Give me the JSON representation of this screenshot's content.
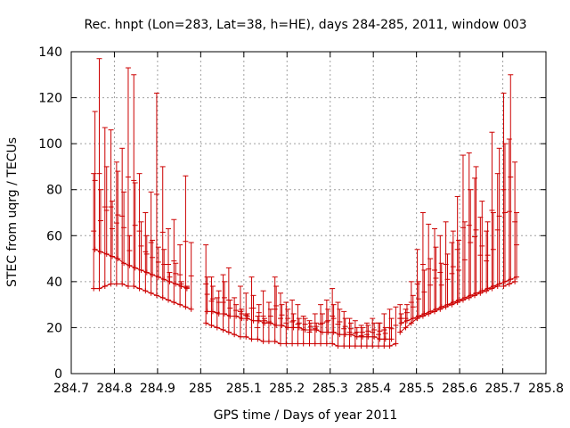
{
  "chart_data": {
    "type": "scatter",
    "title": "Rec. hnpt (Lon=283, Lat=38, h=HE), days 284-285, 2011, window 003",
    "xlabel": "GPS time / Days of year 2011",
    "ylabel": "STEC from uqrg / TECUs",
    "xlim": [
      284.7,
      285.8
    ],
    "ylim": [
      0,
      140
    ],
    "xticks": [
      "284.7",
      "284.8",
      "284.9",
      "285",
      "285.1",
      "285.2",
      "285.3",
      "285.4",
      "285.5",
      "285.6",
      "285.7",
      "285.8"
    ],
    "yticks": [
      "0",
      "20",
      "40",
      "60",
      "80",
      "100",
      "120",
      "140"
    ],
    "grid": true,
    "color": "#cc0000",
    "series": [
      {
        "x": [
          284.752,
          284.765,
          284.778,
          284.792,
          284.805,
          284.818,
          284.832,
          284.845,
          284.858,
          284.872,
          284.885,
          284.898,
          284.912,
          284.925,
          284.938,
          284.952,
          284.965,
          284.978
        ],
        "y": [
          37,
          37,
          38,
          39,
          39,
          39,
          38,
          38,
          37,
          36,
          35,
          34,
          33,
          32,
          31,
          30,
          29,
          28
        ],
        "upper": [
          87,
          137,
          107,
          106,
          92,
          98,
          133,
          130,
          87,
          70,
          79,
          122,
          90,
          63,
          67,
          56,
          86,
          57
        ]
      },
      {
        "x": [
          284.755,
          284.768,
          284.782,
          284.795,
          284.808,
          284.822,
          284.835,
          284.848,
          284.862,
          284.875,
          284.888,
          284.902,
          284.915,
          284.928,
          284.942,
          284.955,
          284.968
        ],
        "y": [
          54,
          53,
          52,
          51,
          50,
          48,
          47,
          46,
          45,
          44,
          43,
          42,
          41,
          40,
          39,
          38,
          37
        ],
        "upper": [
          114,
          80,
          90,
          75,
          88,
          79,
          60,
          83,
          66,
          60,
          58,
          55,
          54,
          44,
          48,
          40,
          38
        ]
      },
      {
        "x": [
          285.012,
          285.025,
          285.038,
          285.052,
          285.065,
          285.078,
          285.092,
          285.105,
          285.118,
          285.132,
          285.145,
          285.158,
          285.172,
          285.185,
          285.198,
          285.212,
          285.225,
          285.238,
          285.252,
          285.265,
          285.278,
          285.292,
          285.305,
          285.318,
          285.332,
          285.345,
          285.358,
          285.372,
          285.385,
          285.398,
          285.412,
          285.425,
          285.438,
          285.452
        ],
        "y": [
          22,
          21,
          20,
          19,
          18,
          17,
          16,
          16,
          15,
          15,
          14,
          14,
          14,
          13,
          13,
          13,
          13,
          13,
          13,
          13,
          13,
          13,
          13,
          12,
          12,
          12,
          12,
          12,
          12,
          12,
          12,
          12,
          12,
          13
        ],
        "upper": [
          56,
          42,
          33,
          43,
          46,
          33,
          38,
          35,
          42,
          25,
          36,
          31,
          42,
          35,
          31,
          32,
          30,
          25,
          23,
          26,
          30,
          32,
          37,
          31,
          27,
          24,
          23,
          21,
          22,
          24,
          22,
          26,
          28,
          29
        ]
      },
      {
        "x": [
          285.015,
          285.028,
          285.042,
          285.055,
          285.068,
          285.082,
          285.095,
          285.108,
          285.122,
          285.135,
          285.148,
          285.162,
          285.175,
          285.188,
          285.202,
          285.215,
          285.228,
          285.242,
          285.255,
          285.268,
          285.282,
          285.295,
          285.308,
          285.322,
          285.335,
          285.348,
          285.362,
          285.375,
          285.388,
          285.402,
          285.415,
          285.428,
          285.442
        ],
        "y": [
          27,
          27,
          26,
          26,
          25,
          25,
          24,
          24,
          23,
          23,
          22,
          22,
          21,
          21,
          20,
          20,
          20,
          19,
          19,
          19,
          18,
          18,
          18,
          17,
          17,
          17,
          16,
          16,
          16,
          16,
          15,
          15,
          15
        ],
        "upper": [
          42,
          38,
          36,
          40,
          32,
          30,
          28,
          26,
          34,
          30,
          24,
          28,
          38,
          30,
          28,
          26,
          24,
          24,
          22,
          22,
          26,
          28,
          30,
          28,
          24,
          22,
          20,
          20,
          21,
          22,
          22,
          20,
          24
        ]
      },
      {
        "x": [
          285.462,
          285.475,
          285.488,
          285.502,
          285.515,
          285.528,
          285.542,
          285.555,
          285.568,
          285.582,
          285.595,
          285.608,
          285.622,
          285.635,
          285.648,
          285.662,
          285.675,
          285.688,
          285.702,
          285.715,
          285.728
        ],
        "y": [
          18,
          20,
          22,
          24,
          25,
          26,
          27,
          28,
          29,
          30,
          31,
          32,
          33,
          34,
          35,
          36,
          37,
          38,
          38,
          39,
          40
        ],
        "upper": [
          30,
          28,
          40,
          54,
          70,
          65,
          63,
          60,
          66,
          57,
          77,
          95,
          96,
          85,
          68,
          62,
          105,
          87,
          122,
          102,
          92
        ]
      },
      {
        "x": [
          285.465,
          285.478,
          285.492,
          285.505,
          285.518,
          285.532,
          285.545,
          285.558,
          285.572,
          285.585,
          285.598,
          285.612,
          285.625,
          285.638,
          285.652,
          285.665,
          285.678,
          285.692,
          285.705,
          285.718,
          285.732
        ],
        "y": [
          22,
          23,
          24,
          25,
          26,
          27,
          28,
          29,
          30,
          31,
          32,
          33,
          34,
          35,
          36,
          37,
          38,
          39,
          40,
          41,
          42
        ],
        "upper": [
          26,
          30,
          34,
          40,
          45,
          50,
          55,
          48,
          52,
          62,
          58,
          66,
          80,
          90,
          75,
          66,
          70,
          98,
          100,
          130,
          70
        ]
      }
    ]
  }
}
